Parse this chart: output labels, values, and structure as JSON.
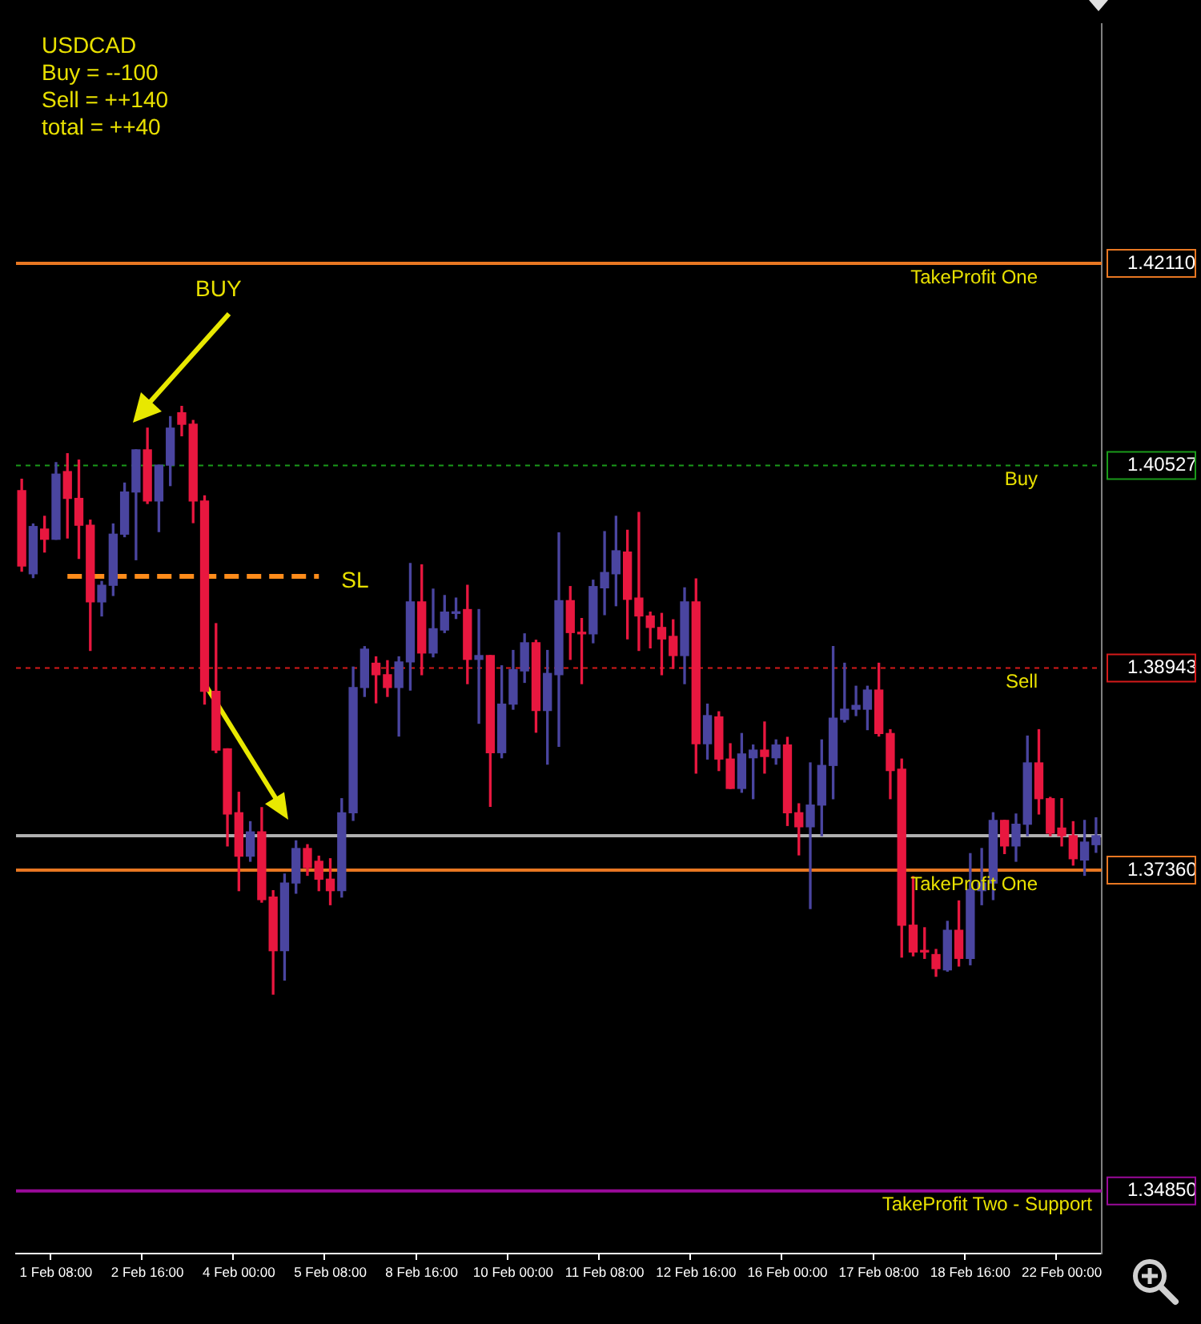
{
  "chart_data": {
    "type": "candlestick",
    "title": "USDCAD",
    "annotations": [
      "Buy = --100",
      "Sell = ++140",
      "total = ++40",
      "BUY"
    ],
    "categories": [
      null,
      null,
      null,
      "1 Feb 08:00",
      null,
      null,
      null,
      null,
      null,
      null,
      null,
      "2 Feb 16:00",
      null,
      null,
      null,
      null,
      null,
      null,
      null,
      "4 Feb 00:00",
      null,
      null,
      null,
      null,
      null,
      null,
      null,
      "5 Feb 08:00",
      null,
      null,
      null,
      null,
      null,
      null,
      null,
      "8 Feb 16:00",
      null,
      null,
      null,
      null,
      null,
      null,
      null,
      "10 Feb 00:00",
      null,
      null,
      null,
      null,
      null,
      null,
      null,
      "11 Feb 08:00",
      null,
      null,
      null,
      null,
      null,
      null,
      null,
      "12 Feb 16:00",
      null,
      null,
      null,
      null,
      null,
      null,
      null,
      "16 Feb 00:00",
      null,
      null,
      null,
      null,
      null,
      null,
      null,
      "17 Feb 08:00",
      null,
      null,
      null,
      null,
      null,
      null,
      null,
      "18 Feb 16:00",
      null,
      null,
      null,
      null,
      null,
      null,
      null,
      "22 Feb 00:00",
      null,
      null,
      null
    ],
    "ohlc": [
      [
        1.4033,
        1.4042,
        1.397,
        1.3974
      ],
      [
        1.3968,
        1.4007,
        1.3965,
        1.4005
      ],
      [
        1.4003,
        1.4013,
        1.3985,
        1.3995
      ],
      [
        1.3995,
        1.4055,
        1.3995,
        1.4046
      ],
      [
        1.4048,
        1.4062,
        1.3996,
        1.4027
      ],
      [
        1.4027,
        1.4057,
        1.398,
        1.4006
      ],
      [
        1.4006,
        1.401,
        1.3908,
        1.3946
      ],
      [
        1.3946,
        1.3962,
        1.3935,
        1.3959
      ],
      [
        1.3959,
        1.4007,
        1.3951,
        1.3999
      ],
      [
        1.3999,
        1.4039,
        1.3997,
        1.4032
      ],
      [
        1.4032,
        1.4065,
        1.3979,
        1.4065
      ],
      [
        1.4065,
        1.4082,
        1.4023,
        1.4025
      ],
      [
        1.4025,
        1.4053,
        1.4001,
        1.4053
      ],
      [
        1.4053,
        1.4091,
        1.4037,
        1.4082
      ],
      [
        1.4094,
        1.4099,
        1.4076,
        1.4085
      ],
      [
        1.4085,
        1.4088,
        1.4008,
        1.4025
      ],
      [
        1.4025,
        1.4029,
        1.3866,
        1.3876
      ],
      [
        1.3876,
        1.3929,
        1.3828,
        1.383
      ],
      [
        1.3831,
        1.3831,
        1.3755,
        1.378
      ],
      [
        1.3781,
        1.3797,
        1.372,
        1.3747
      ],
      [
        1.3747,
        1.3774,
        1.3743,
        1.3766
      ],
      [
        1.3766,
        1.3785,
        1.3711,
        1.3713
      ],
      [
        1.3715,
        1.372,
        1.3639,
        1.3673
      ],
      [
        1.3673,
        1.3733,
        1.365,
        1.3726
      ],
      [
        1.3726,
        1.3759,
        1.3718,
        1.3753
      ],
      [
        1.3753,
        1.3756,
        1.3732,
        1.3738
      ],
      [
        1.3743,
        1.3747,
        1.372,
        1.3729
      ],
      [
        1.3729,
        1.3745,
        1.3709,
        1.372
      ],
      [
        1.372,
        1.3792,
        1.3715,
        1.3781
      ],
      [
        1.3781,
        1.3895,
        1.3775,
        1.3879
      ],
      [
        1.3879,
        1.3911,
        1.3872,
        1.3909
      ],
      [
        1.3898,
        1.3903,
        1.3867,
        1.3889
      ],
      [
        1.3889,
        1.39,
        1.3872,
        1.3879
      ],
      [
        1.3879,
        1.3903,
        1.3841,
        1.3899
      ],
      [
        1.3899,
        1.3976,
        1.3877,
        1.3946
      ],
      [
        1.3946,
        1.3975,
        1.3889,
        1.3906
      ],
      [
        1.3906,
        1.3956,
        1.3903,
        1.3925
      ],
      [
        1.3924,
        1.3951,
        1.3922,
        1.3938
      ],
      [
        1.3937,
        1.3949,
        1.3933,
        1.3938
      ],
      [
        1.394,
        1.3959,
        1.3882,
        1.3901
      ],
      [
        1.3901,
        1.394,
        1.3851,
        1.3904
      ],
      [
        1.3904,
        1.3904,
        1.3786,
        1.3828
      ],
      [
        1.3828,
        1.3896,
        1.3824,
        1.3866
      ],
      [
        1.3866,
        1.3908,
        1.3862,
        1.3893
      ],
      [
        1.3892,
        1.3921,
        1.3883,
        1.3914
      ],
      [
        1.3914,
        1.3916,
        1.3844,
        1.3861
      ],
      [
        1.3861,
        1.3908,
        1.3819,
        1.389
      ],
      [
        1.3889,
        1.4,
        1.3833,
        1.3947
      ],
      [
        1.3947,
        1.3958,
        1.3901,
        1.3922
      ],
      [
        1.3922,
        1.3933,
        1.3882,
        1.3921
      ],
      [
        1.3921,
        1.3963,
        1.3914,
        1.3958
      ],
      [
        1.3957,
        1.4001,
        1.3936,
        1.3969
      ],
      [
        1.3968,
        1.4013,
        1.3943,
        1.3986
      ],
      [
        1.3985,
        1.4002,
        1.3917,
        1.3948
      ],
      [
        1.3949,
        1.4016,
        1.3908,
        1.3935
      ],
      [
        1.3935,
        1.3938,
        1.391,
        1.3926
      ],
      [
        1.3926,
        1.3937,
        1.3889,
        1.3917
      ],
      [
        1.3919,
        1.3932,
        1.3894,
        1.3904
      ],
      [
        1.3904,
        1.3957,
        1.3882,
        1.3946
      ],
      [
        1.3946,
        1.3964,
        1.3812,
        1.3835
      ],
      [
        1.3835,
        1.3866,
        1.3823,
        1.3857
      ],
      [
        1.3856,
        1.386,
        1.3814,
        1.3823
      ],
      [
        1.3823,
        1.3835,
        1.38,
        1.38
      ],
      [
        1.38,
        1.3843,
        1.3797,
        1.3827
      ],
      [
        1.3824,
        1.3834,
        1.3792,
        1.383
      ],
      [
        1.383,
        1.3852,
        1.3812,
        1.3825
      ],
      [
        1.3824,
        1.3838,
        1.3819,
        1.3834
      ],
      [
        1.3834,
        1.384,
        1.3771,
        1.3781
      ],
      [
        1.3781,
        1.3788,
        1.3748,
        1.377
      ],
      [
        1.377,
        1.382,
        1.3706,
        1.3787
      ],
      [
        1.3787,
        1.3838,
        1.3763,
        1.3818
      ],
      [
        1.3818,
        1.3911,
        1.3792,
        1.3855
      ],
      [
        1.3854,
        1.3898,
        1.3852,
        1.3862
      ],
      [
        1.3862,
        1.388,
        1.3857,
        1.3865
      ],
      [
        1.3862,
        1.388,
        1.3846,
        1.3877
      ],
      [
        1.3877,
        1.3898,
        1.3841,
        1.3843
      ],
      [
        1.3843,
        1.3846,
        1.3792,
        1.3814
      ],
      [
        1.3815,
        1.3823,
        1.3668,
        1.3693
      ],
      [
        1.3693,
        1.3731,
        1.3669,
        1.3672
      ],
      [
        1.3673,
        1.3691,
        1.3667,
        1.3672
      ],
      [
        1.367,
        1.3674,
        1.3653,
        1.3659
      ],
      [
        1.3658,
        1.3696,
        1.3657,
        1.3689
      ],
      [
        1.3689,
        1.3712,
        1.3661,
        1.3667
      ],
      [
        1.3667,
        1.3749,
        1.3662,
        1.3721
      ],
      [
        1.372,
        1.3753,
        1.3709,
        1.3726
      ],
      [
        1.3726,
        1.3781,
        1.3713,
        1.3775
      ],
      [
        1.3775,
        1.3775,
        1.3749,
        1.3755
      ],
      [
        1.3755,
        1.378,
        1.3743,
        1.3772
      ],
      [
        1.3772,
        1.3841,
        1.3763,
        1.382
      ],
      [
        1.382,
        1.3846,
        1.378,
        1.3792
      ],
      [
        1.3792,
        1.3793,
        1.3763,
        1.3765
      ],
      [
        1.3769,
        1.3792,
        1.3755,
        1.3763
      ],
      [
        1.3763,
        1.3774,
        1.374,
        1.3745
      ],
      [
        1.3744,
        1.3775,
        1.3732,
        1.3758
      ],
      [
        1.3756,
        1.3777,
        1.375,
        1.3763
      ]
    ],
    "colors": [
      "#e8173f",
      "#4a45a0",
      "#e8173f",
      "#4a45a0",
      "#e8173f",
      "#e8173f",
      "#e8173f",
      "#4a45a0",
      "#4a45a0",
      "#4a45a0",
      "#4a45a0",
      "#e8173f",
      "#4a45a0",
      "#4a45a0",
      "#e8173f",
      "#e8173f",
      "#e8173f",
      "#e8173f",
      "#e8173f",
      "#e8173f",
      "#4a45a0",
      "#e8173f",
      "#e8173f",
      "#4a45a0",
      "#4a45a0",
      "#e8173f",
      "#e8173f",
      "#e8173f",
      "#4a45a0",
      "#4a45a0",
      "#4a45a0",
      "#e8173f",
      "#e8173f",
      "#4a45a0",
      "#4a45a0",
      "#e8173f",
      "#4a45a0",
      "#4a45a0",
      "#4a45a0",
      "#e8173f",
      "#4a45a0",
      "#e8173f",
      "#4a45a0",
      "#4a45a0",
      "#4a45a0",
      "#e8173f",
      "#4a45a0",
      "#4a45a0",
      "#e8173f",
      "#e8173f",
      "#4a45a0",
      "#4a45a0",
      "#4a45a0",
      "#e8173f",
      "#e8173f",
      "#e8173f",
      "#e8173f",
      "#e8173f",
      "#4a45a0",
      "#e8173f",
      "#4a45a0",
      "#e8173f",
      "#e8173f",
      "#4a45a0",
      "#4a45a0",
      "#e8173f",
      "#4a45a0",
      "#e8173f",
      "#e8173f",
      "#4a45a0",
      "#4a45a0",
      "#4a45a0",
      "#4a45a0",
      "#4a45a0",
      "#4a45a0",
      "#e8173f",
      "#e8173f",
      "#e8173f",
      "#e8173f",
      "#e8173f",
      "#e8173f",
      "#4a45a0",
      "#e8173f",
      "#4a45a0",
      "#4a45a0",
      "#4a45a0",
      "#e8173f",
      "#4a45a0",
      "#4a45a0",
      "#e8173f",
      "#e8173f",
      "#e8173f",
      "#e8173f",
      "#4a45a0",
      "#4a45a0"
    ],
    "series": [
      {
        "type": "line",
        "name": "SL",
        "color": "#ff8c1a",
        "line_style": "dashed",
        "values": [
          null,
          null,
          null,
          null,
          1.3966,
          1.3966,
          1.3966,
          1.3966,
          1.3966,
          1.3966,
          1.3966,
          1.3966,
          1.3966,
          1.3966,
          1.3966,
          1.3966,
          1.3966,
          1.3966,
          1.3966,
          1.3966,
          1.3966,
          1.3966,
          1.3966,
          1.3966,
          1.3966,
          1.3966,
          1.3966,
          null,
          null,
          null,
          null,
          null,
          null,
          null,
          null,
          null,
          null,
          null,
          null,
          null,
          null,
          null,
          null,
          null,
          null,
          null,
          null,
          null,
          null,
          null,
          null,
          null,
          null,
          null,
          null,
          null,
          null,
          null,
          null,
          null,
          null,
          null,
          null,
          null,
          null,
          null,
          null,
          null,
          null,
          null,
          null,
          null,
          null,
          null,
          null,
          null,
          null,
          null,
          null,
          null,
          null,
          null,
          null,
          null,
          null,
          null,
          null,
          null,
          null,
          null,
          null,
          null,
          null,
          null,
          null
        ]
      }
    ],
    "ylim": [
      1.3436,
      1.4398
    ],
    "yticks": [
      {
        "value": 1.3485,
        "label": "1.34850"
      },
      {
        "value": 1.3736,
        "label": "1.37360"
      },
      {
        "value": 1.38943,
        "label": "1.38943"
      },
      {
        "value": 1.40527,
        "label": "1.40527"
      },
      {
        "value": 1.4211,
        "label": "1.42110"
      }
    ],
    "ref_lines": [
      {
        "axis": "y",
        "value": 1.4211,
        "label": "TakeProfit One",
        "color": "#e87722",
        "line_style": "solid"
      },
      {
        "axis": "y",
        "value": 1.40527,
        "label": "Buy",
        "color": "#1a9a1a",
        "line_style": "dotted"
      },
      {
        "axis": "y",
        "value": 1.38943,
        "label": "Sell",
        "color": "#d41a1a",
        "line_style": "dotted"
      },
      {
        "axis": "y",
        "value": 1.3763,
        "label": null,
        "color": "#b0b0b0",
        "line_style": "solid"
      },
      {
        "axis": "y",
        "value": 1.3736,
        "label": "TakeProfit One",
        "color": "#e87722",
        "line_style": "solid"
      },
      {
        "axis": "y",
        "value": 1.3485,
        "label": "TakeProfit Two - Support",
        "color": "#9a0a9a",
        "line_style": "solid"
      }
    ]
  }
}
